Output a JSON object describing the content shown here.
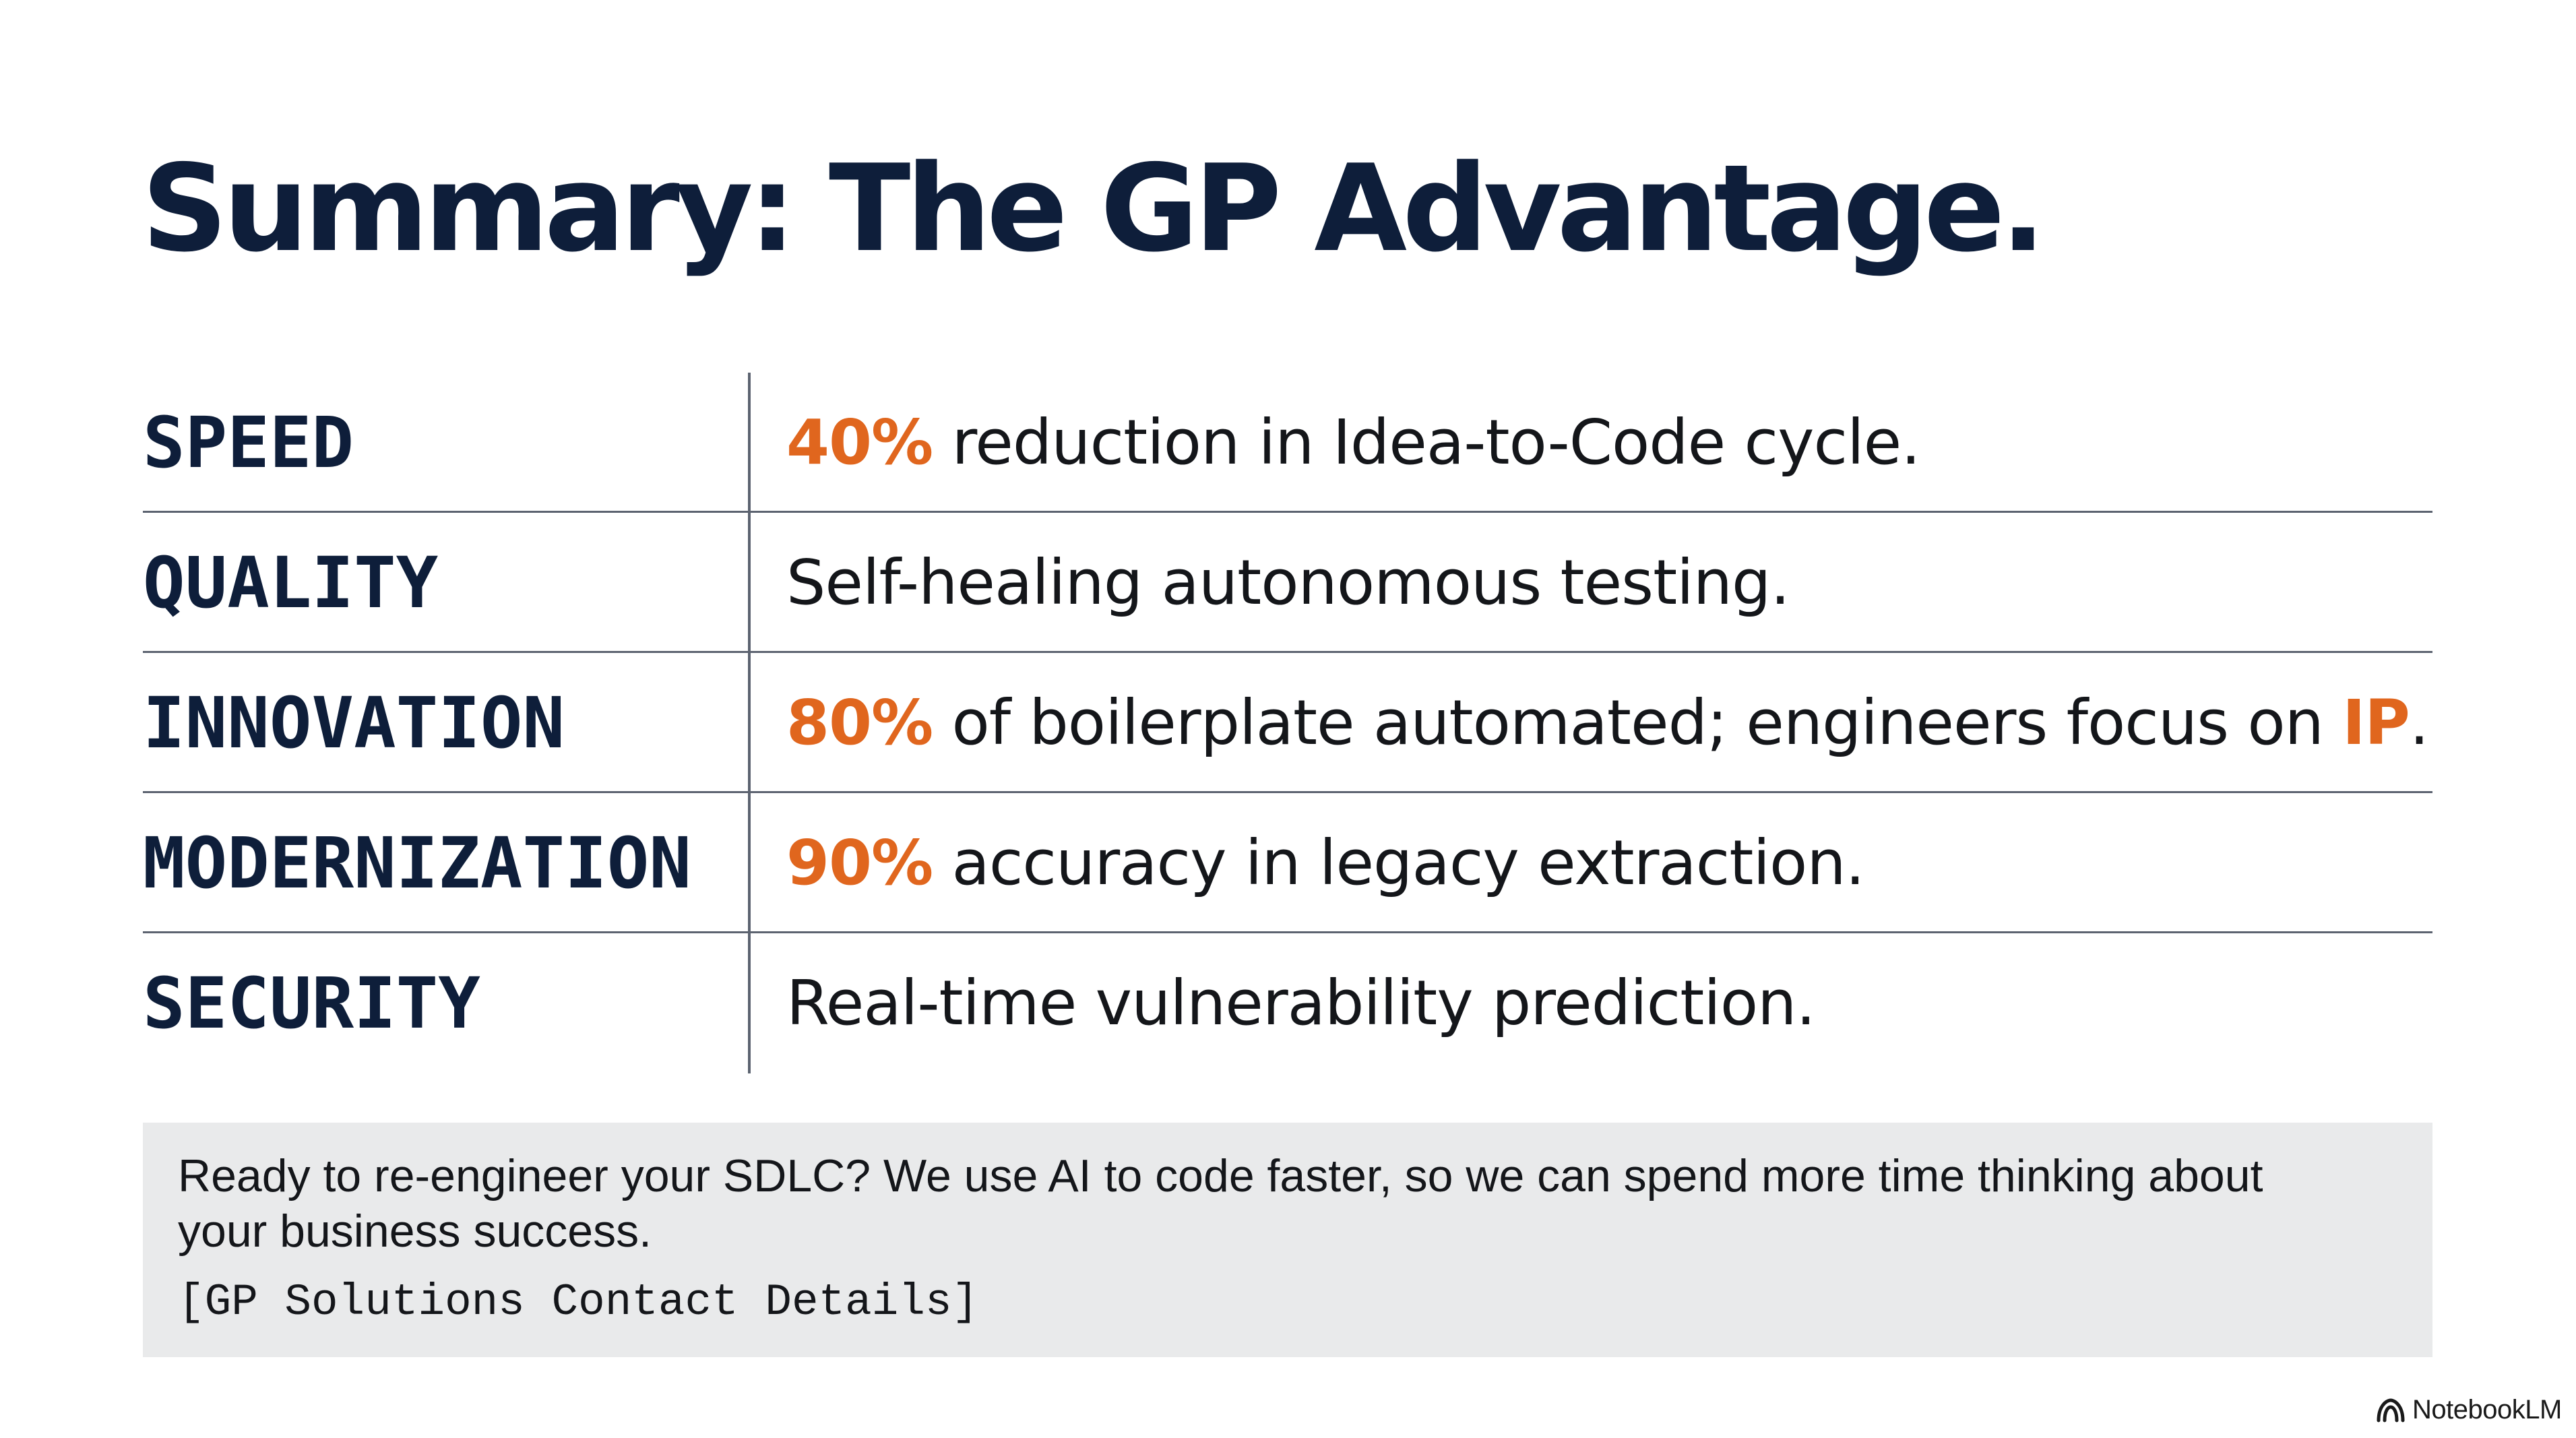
{
  "colors": {
    "heading": "#0e1e3a",
    "text": "#14161a",
    "accent": "#e0661e",
    "divider": "#5c6370",
    "footer_bg": "#e9eaeb"
  },
  "title": "Summary: The GP Advantage.",
  "rows": [
    {
      "label": "SPEED",
      "highlight": "40%",
      "text": " reduction in Idea-to-Code cycle.",
      "highlight_end": "",
      "text_end": ""
    },
    {
      "label": "QUALITY",
      "highlight": "",
      "text": "Self-healing autonomous testing.",
      "highlight_end": "",
      "text_end": ""
    },
    {
      "label": "INNOVATION",
      "highlight": "80%",
      "text": " of boilerplate automated; engineers focus on ",
      "highlight_end": "IP",
      "text_end": "."
    },
    {
      "label": "MODERNIZATION",
      "highlight": "90%",
      "text": " accuracy in legacy extraction.",
      "highlight_end": "",
      "text_end": ""
    },
    {
      "label": "SECURITY",
      "highlight": "",
      "text": "Real-time vulnerability prediction.",
      "highlight_end": "",
      "text_end": ""
    }
  ],
  "footer": {
    "text": "Ready to re-engineer your SDLC? We use AI to code faster, so we can spend more time thinking about your business success.",
    "contact": "[GP Solutions Contact Details]"
  },
  "brand": {
    "icon": "notebooklm-logo-icon",
    "name": "NotebookLM"
  }
}
